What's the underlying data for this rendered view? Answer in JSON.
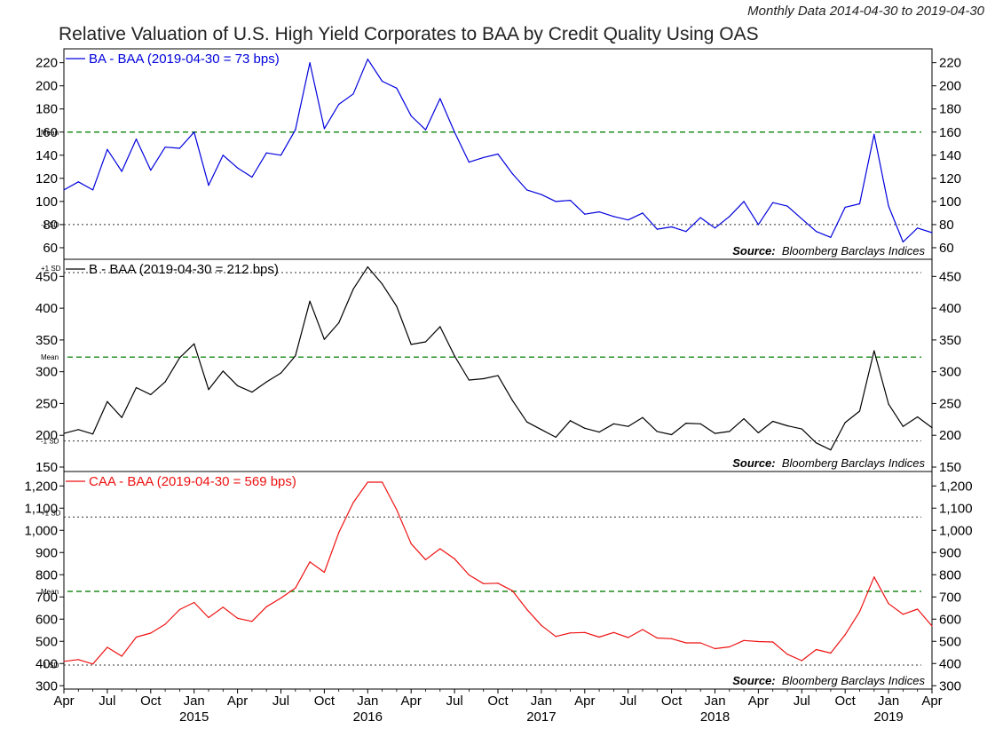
{
  "header": {
    "subtitle": "Monthly Data 2014-04-30 to 2019-04-30",
    "title": "Relative Valuation of U.S. High Yield Corporates to BAA by Credit Quality Using OAS"
  },
  "source": {
    "label": "Source:",
    "text": "Bloomberg Barclays Indices"
  },
  "chart_data": {
    "type": "line",
    "x_start": "2014-04",
    "x_end": "2019-04",
    "x_tick_labels": [
      "Apr",
      "Jul",
      "Oct",
      "Jan",
      "Apr",
      "Jul",
      "Oct",
      "Jan",
      "Apr",
      "Jul",
      "Oct",
      "Jan",
      "Apr",
      "Jul",
      "Oct",
      "Jan",
      "Apr",
      "Jul",
      "Oct",
      "Jan",
      "Apr"
    ],
    "x_tick_month_offsets": [
      0,
      3,
      6,
      9,
      12,
      15,
      18,
      21,
      24,
      27,
      30,
      33,
      36,
      39,
      42,
      45,
      48,
      51,
      54,
      57,
      60
    ],
    "year_labels": [
      {
        "label": "2015",
        "month_offset": 9
      },
      {
        "label": "2016",
        "month_offset": 21
      },
      {
        "label": "2017",
        "month_offset": 33
      },
      {
        "label": "2018",
        "month_offset": 45
      },
      {
        "label": "2019",
        "month_offset": 57
      }
    ],
    "panels": [
      {
        "name": "BA - BAA",
        "legend": "BA - BAA (2019-04-30 = 73 bps)",
        "color": "#0000dd",
        "ylim": [
          50,
          232
        ],
        "yticks": [
          60,
          80,
          100,
          120,
          140,
          160,
          180,
          200,
          220
        ],
        "ytick_labels": [
          "60",
          "80",
          "100",
          "120",
          "140",
          "160",
          "180",
          "200",
          "220"
        ],
        "mean": 160,
        "minus_1sd": 80,
        "values": [
          110,
          117,
          110,
          145,
          126,
          154,
          127,
          147,
          146,
          160,
          114,
          140,
          129,
          121,
          142,
          140,
          162,
          220,
          163,
          184,
          193,
          223,
          204,
          198,
          174,
          162,
          189,
          160,
          134,
          138,
          141,
          124,
          110,
          106,
          100,
          101,
          89,
          91,
          87,
          84,
          90,
          76,
          78,
          74,
          86,
          77,
          87,
          100,
          80,
          99,
          96,
          85,
          74,
          69,
          95,
          98,
          158,
          96,
          65,
          77,
          73
        ]
      },
      {
        "name": "B - BAA",
        "legend": "B - BAA (2019-04-30 = 212 bps)",
        "color": "#000000",
        "ylim": [
          143,
          477
        ],
        "yticks": [
          150,
          200,
          250,
          300,
          350,
          400,
          450
        ],
        "ytick_labels": [
          "150",
          "200",
          "250",
          "300",
          "350",
          "400",
          "450"
        ],
        "mean": 323,
        "plus_1sd": 456,
        "minus_1sd": 191,
        "values": [
          203,
          209,
          202,
          253,
          228,
          275,
          264,
          284,
          322,
          344,
          272,
          301,
          278,
          268,
          284,
          298,
          325,
          411,
          351,
          377,
          430,
          465,
          438,
          403,
          343,
          347,
          371,
          325,
          287,
          289,
          294,
          255,
          221,
          209,
          197,
          223,
          211,
          205,
          218,
          214,
          228,
          206,
          201,
          219,
          218,
          203,
          206,
          226,
          204,
          222,
          215,
          210,
          188,
          177,
          220,
          238,
          333,
          249,
          214,
          229,
          212
        ]
      },
      {
        "name": "CAA - BAA",
        "legend": "CAA - BAA (2019-04-30 = 569 bps)",
        "color": "#ee1111",
        "ylim": [
          285,
          1265
        ],
        "yticks": [
          300,
          400,
          500,
          600,
          700,
          800,
          900,
          1000,
          1100,
          1200
        ],
        "ytick_labels": [
          "300",
          "400",
          "500",
          "600",
          "700",
          "800",
          "900",
          "1,000",
          "1,100",
          "1,200"
        ],
        "mean": 725,
        "plus_1sd": 1060,
        "minus_1sd": 393,
        "values": [
          410,
          418,
          398,
          473,
          433,
          519,
          537,
          577,
          643,
          675,
          607,
          654,
          604,
          590,
          656,
          695,
          740,
          858,
          811,
          990,
          1125,
          1217,
          1217,
          1093,
          940,
          868,
          917,
          872,
          799,
          760,
          762,
          728,
          644,
          572,
          522,
          538,
          540,
          519,
          540,
          517,
          553,
          515,
          512,
          493,
          493,
          467,
          475,
          504,
          499,
          497,
          442,
          413,
          463,
          447,
          530,
          634,
          790,
          670,
          622,
          645,
          569
        ]
      }
    ],
    "mean_label": "Mean",
    "plus_1sd_label": "+1 SD",
    "minus_1sd_label": "-1 SD"
  }
}
